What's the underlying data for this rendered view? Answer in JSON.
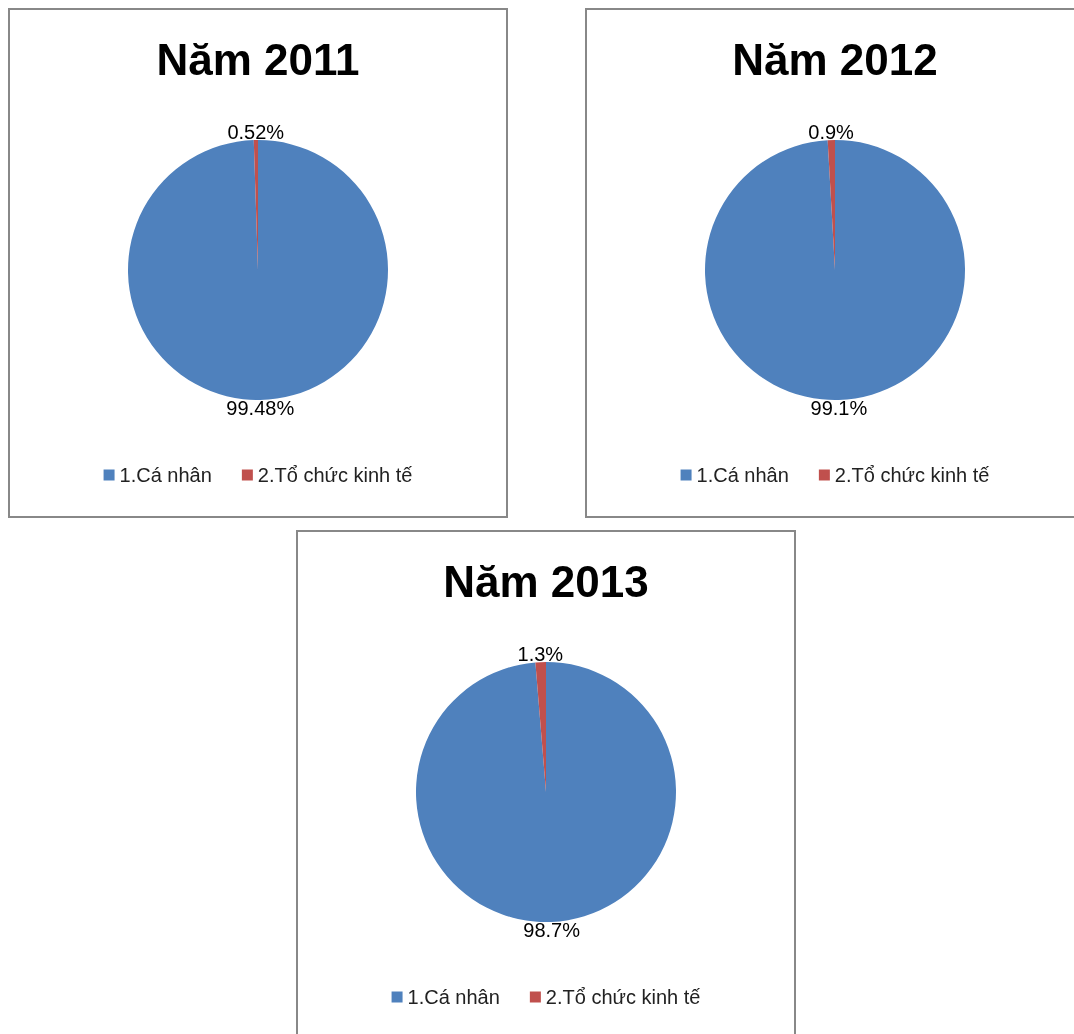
{
  "chart_data": [
    {
      "type": "pie",
      "title": "Năm 2011",
      "categories": [
        "1.Cá nhân",
        "2.Tổ chức kinh tế"
      ],
      "values": [
        99.48,
        0.52
      ],
      "value_labels": [
        "99.48%",
        "0.52%"
      ],
      "colors": [
        "#4f81bd",
        "#c0504d"
      ],
      "legend": "bottom"
    },
    {
      "type": "pie",
      "title": "Năm 2012",
      "categories": [
        "1.Cá nhân",
        "2.Tổ chức kinh tế"
      ],
      "values": [
        99.1,
        0.9
      ],
      "value_labels": [
        "99.1%",
        "0.9%"
      ],
      "colors": [
        "#4f81bd",
        "#c0504d"
      ],
      "legend": "bottom"
    },
    {
      "type": "pie",
      "title": "Năm 2013",
      "categories": [
        "1.Cá nhân",
        "2.Tổ chức kinh tế"
      ],
      "values": [
        98.7,
        1.3
      ],
      "value_labels": [
        "98.7%",
        "1.3%"
      ],
      "colors": [
        "#4f81bd",
        "#c0504d"
      ],
      "legend": "bottom"
    }
  ]
}
